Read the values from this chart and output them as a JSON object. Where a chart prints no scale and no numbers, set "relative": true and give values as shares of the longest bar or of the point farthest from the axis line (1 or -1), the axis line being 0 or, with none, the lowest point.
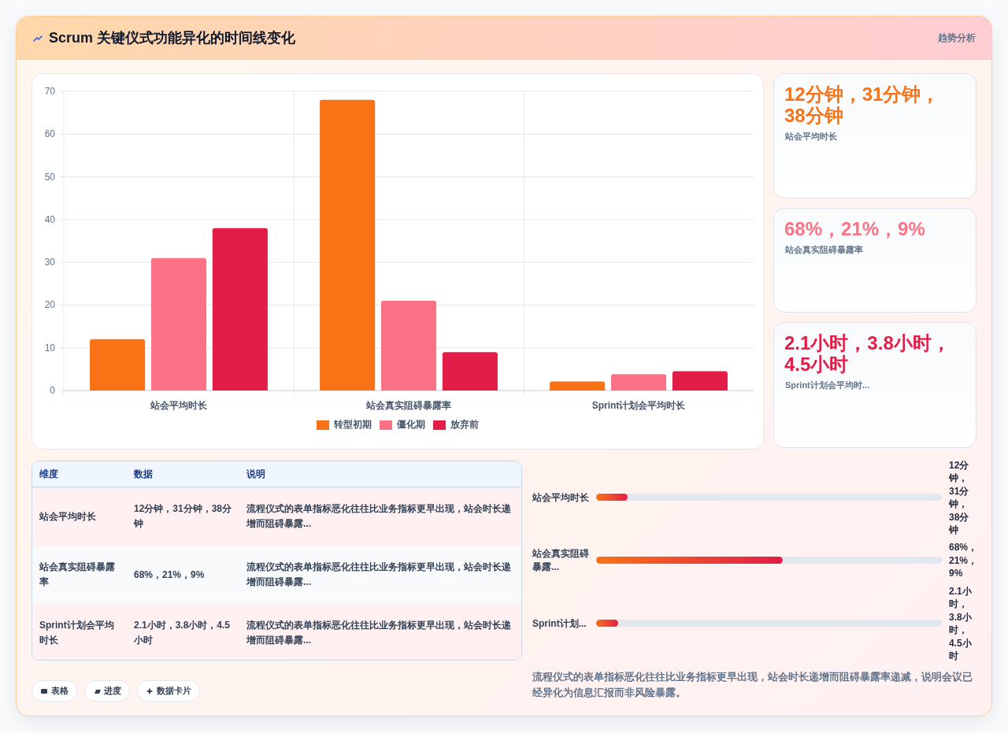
{
  "chart_data": [
    {
      "type": "other",
      "title": "Scrum 关键仪式功能异化的时间线变化",
      "subtitle": "趋势分析"
    },
    {
      "type": "bar",
      "categories": [
        "站会平均时长",
        "站会真实阻碍暴露率",
        "Sprint计划会平均时长"
      ],
      "series": [
        {
          "name": "转型初期",
          "color": "#f97316",
          "values": [
            12,
            68,
            2.1
          ]
        },
        {
          "name": "僵化期",
          "color": "#fb7185",
          "values": [
            31,
            21,
            3.8
          ]
        },
        {
          "name": "放弃前",
          "color": "#e11d48",
          "values": [
            38,
            9,
            4.5
          ]
        }
      ],
      "ylim": [
        0,
        70
      ],
      "yticks": [
        0,
        10,
        20,
        30,
        40,
        50,
        60,
        70
      ],
      "grid": true,
      "legend": "bottom"
    },
    {
      "type": "other",
      "categories": [
        "站会平均时长",
        "站会真实阻碍暴露率",
        "Sprint计划会平均时..."
      ],
      "value_labels": [
        "12分钟，31分钟，38分钟",
        "68%，21%，9%",
        "2.1小时，3.8小时，4.5小时"
      ],
      "colors": [
        "#f97316",
        "#fb7185",
        "#e11d48"
      ]
    },
    {
      "type": "other",
      "categories": [
        "维度",
        "数据",
        "说明"
      ],
      "cell_labels": [
        [
          "站会平均时长",
          "12分钟，31分钟，38分钟",
          "流程仪式的表单指标恶化往往比业务指标更早出现，站会时长递增而阻碍暴露..."
        ],
        [
          "站会真实阻碍暴露率",
          "68%，21%，9%",
          "流程仪式的表单指标恶化往往比业务指标更早出现，站会时长递增而阻碍暴露..."
        ],
        [
          "Sprint计划会平均时长",
          "2.1小时，3.8小时，4.5小时",
          "流程仪式的表单指标恶化往往比业务指标更早出现，站会时长递增而阻碍暴露..."
        ]
      ]
    },
    {
      "type": "bar",
      "orientation": "horizontal",
      "relative": true,
      "categories": [
        "站会平均时长",
        "站会真实阻碍暴露...",
        "Sprint计划..."
      ],
      "y2_categories": [
        "12分钟，31分钟，38分钟",
        "68%，21%，9%",
        "2.1小时，3.8小时，4.5小时"
      ],
      "values": [
        0.17,
        1,
        0.12
      ],
      "color": "#e11d48",
      "annotations": [
        "流程仪式的表单指标恶化往往比业务指标更早出现，站会时长递增而阻碍暴露率递减，说明会议已经异化为信息汇报而非风险暴露。"
      ]
    },
    {
      "type": "other",
      "annotations": [
        "表格",
        "进度",
        "数据卡片"
      ]
    }
  ]
}
